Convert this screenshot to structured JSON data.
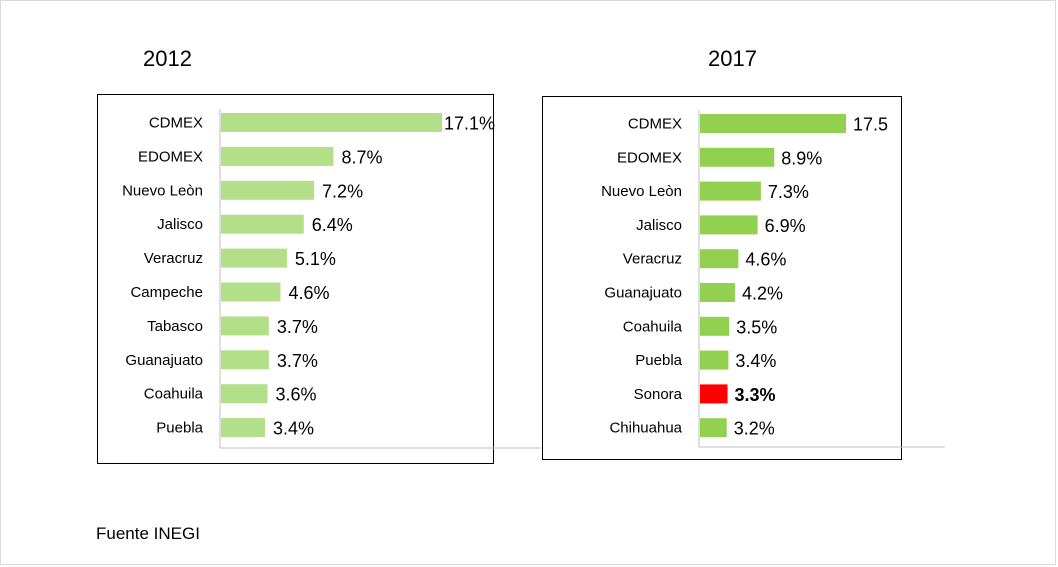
{
  "source_note": "Fuente INEGI",
  "chart_data": [
    {
      "type": "bar",
      "orientation": "horizontal",
      "title": "2012",
      "categories": [
        "CDMEX",
        "EDOMEX",
        "Nuevo Leòn",
        "Jalisco",
        "Veracruz",
        "Campeche",
        "Tabasco",
        "Guanajuato",
        "Coahuila",
        "Puebla"
      ],
      "values": [
        17.1,
        8.7,
        7.2,
        6.4,
        5.1,
        4.6,
        3.7,
        3.7,
        3.6,
        3.4
      ],
      "value_labels": [
        "17.1%",
        "8.7%",
        "7.2%",
        "6.4%",
        "5.1%",
        "4.6%",
        "3.7%",
        "3.7%",
        "3.6%",
        "3.4%"
      ],
      "bar_color": "#b3df88",
      "highlight_color": null,
      "highlight_index": null,
      "xlim": [
        0,
        17.1
      ],
      "grid": false,
      "legend": "none"
    },
    {
      "type": "bar",
      "orientation": "horizontal",
      "title": "2017",
      "categories": [
        "CDMEX",
        "EDOMEX",
        "Nuevo Leòn",
        "Jalisco",
        "Veracruz",
        "Guanajuato",
        "Coahuila",
        "Puebla",
        "Sonora",
        "Chihuahua"
      ],
      "values": [
        17.5,
        8.9,
        7.3,
        6.9,
        4.6,
        4.2,
        3.5,
        3.4,
        3.3,
        3.2
      ],
      "value_labels": [
        "17.5",
        "8.9%",
        "7.3%",
        "6.9%",
        "4.6%",
        "4.2%",
        "3.5%",
        "3.4%",
        "3.3%",
        "3.2%"
      ],
      "bar_color": "#92d050",
      "highlight_color": "#ff0000",
      "highlight_index": 8,
      "xlim": [
        0,
        17.5
      ],
      "grid": false,
      "legend": "none"
    }
  ]
}
